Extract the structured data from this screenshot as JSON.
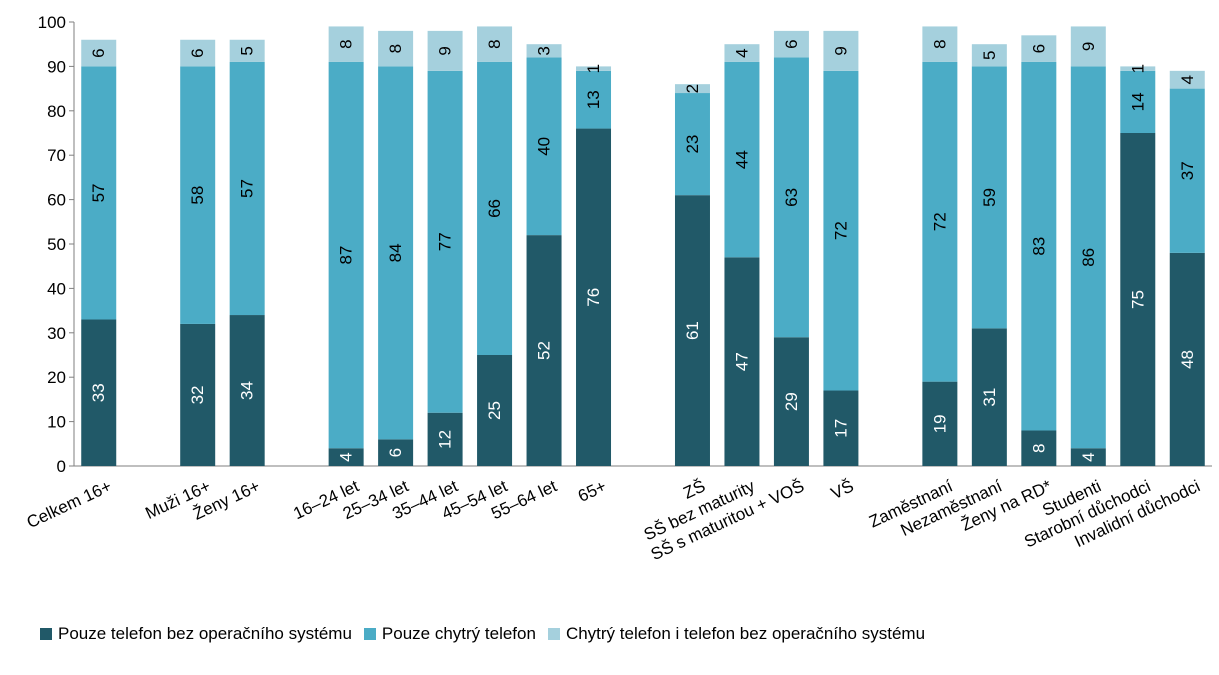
{
  "chart_data": {
    "type": "bar",
    "stacked": true,
    "ylim": [
      0,
      100
    ],
    "yticks": [
      0,
      10,
      20,
      30,
      40,
      50,
      60,
      70,
      80,
      90,
      100
    ],
    "grid": false,
    "legend_position": "bottom",
    "categories": [
      "Celkem 16+",
      "",
      "Muži 16+",
      "Ženy 16+",
      "",
      "16–24 let",
      "25–34 let",
      "35–44 let",
      "45–54 let",
      "55–64 let",
      "65+",
      "",
      "ZŠ",
      "SŠ bez maturity",
      "SŠ s maturitou + VOŠ",
      "VŠ",
      "",
      "Zaměstnaní",
      "Nezaměstnaní",
      "Ženy na RD*",
      "Studenti",
      "Starobní důchodci",
      "Invalidní důchodci"
    ],
    "series": [
      {
        "name": "Pouze telefon bez operačního systému",
        "color": "#215968",
        "label_color": "#ffffff",
        "values": [
          33,
          null,
          32,
          34,
          null,
          4,
          6,
          12,
          25,
          52,
          76,
          null,
          61,
          47,
          29,
          17,
          null,
          19,
          31,
          8,
          4,
          75,
          48
        ]
      },
      {
        "name": "Pouze chytrý telefon",
        "color": "#4bacc6",
        "label_color": "#000000",
        "values": [
          57,
          null,
          58,
          57,
          null,
          87,
          84,
          77,
          66,
          40,
          13,
          null,
          23,
          44,
          63,
          72,
          null,
          72,
          59,
          83,
          86,
          14,
          37
        ]
      },
      {
        "name": "Chytrý telefon i telefon bez operačního systému",
        "color": "#a5d0dd",
        "label_color": "#000000",
        "values": [
          6,
          null,
          6,
          5,
          null,
          8,
          8,
          9,
          8,
          3,
          1,
          null,
          2,
          4,
          6,
          9,
          null,
          8,
          5,
          6,
          9,
          1,
          4
        ]
      }
    ]
  }
}
